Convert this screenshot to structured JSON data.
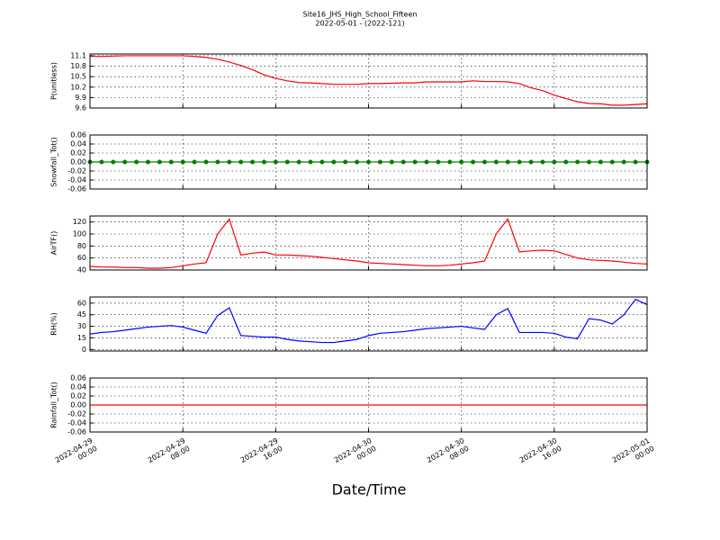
{
  "title": "Site16_JHS_High_School_Fifteen",
  "subtitle": "2022-05-01 - (2022-121)",
  "xlabel": "Date/Time",
  "chart_data": [
    {
      "type": "line",
      "ylabel": "P(unitless)",
      "xlim": [
        "2022-04-29 00:00",
        "2022-05-01 00:00"
      ],
      "xticks": [
        "2022-04-29 00:00",
        "2022-04-29 08:00",
        "2022-04-29 16:00",
        "2022-04-30 00:00",
        "2022-04-30 08:00",
        "2022-04-30 16:00",
        "2022-05-01 00:00"
      ],
      "ylim": [
        9.6,
        11.15
      ],
      "yticks": [
        9.6,
        9.9,
        10.2,
        10.5,
        10.8,
        11.1
      ],
      "grid": true,
      "x": [
        "2022-04-29 00:00",
        "2022-04-29 01:00",
        "2022-04-29 02:00",
        "2022-04-29 03:00",
        "2022-04-29 04:00",
        "2022-04-29 05:00",
        "2022-04-29 06:00",
        "2022-04-29 07:00",
        "2022-04-29 08:00",
        "2022-04-29 09:00",
        "2022-04-29 10:00",
        "2022-04-29 11:00",
        "2022-04-29 12:00",
        "2022-04-29 13:00",
        "2022-04-29 14:00",
        "2022-04-29 15:00",
        "2022-04-29 16:00",
        "2022-04-29 17:00",
        "2022-04-29 18:00",
        "2022-04-29 19:00",
        "2022-04-29 20:00",
        "2022-04-29 21:00",
        "2022-04-29 22:00",
        "2022-04-29 23:00",
        "2022-04-30 00:00",
        "2022-04-30 01:00",
        "2022-04-30 02:00",
        "2022-04-30 03:00",
        "2022-04-30 04:00",
        "2022-04-30 05:00",
        "2022-04-30 06:00",
        "2022-04-30 07:00",
        "2022-04-30 08:00",
        "2022-04-30 09:00",
        "2022-04-30 10:00",
        "2022-04-30 11:00",
        "2022-04-30 12:00",
        "2022-04-30 13:00",
        "2022-04-30 14:00",
        "2022-04-30 15:00",
        "2022-04-30 16:00",
        "2022-04-30 17:00",
        "2022-04-30 18:00",
        "2022-04-30 19:00",
        "2022-04-30 20:00",
        "2022-04-30 21:00",
        "2022-04-30 22:00",
        "2022-04-30 23:00",
        "2022-05-01 00:00"
      ],
      "series": [
        {
          "color": "#ff0000",
          "markers": false,
          "values": [
            11.08,
            11.08,
            11.09,
            11.1,
            11.1,
            11.1,
            11.1,
            11.1,
            11.1,
            11.08,
            11.05,
            11.0,
            10.92,
            10.82,
            10.7,
            10.55,
            10.45,
            10.38,
            10.33,
            10.32,
            10.3,
            10.28,
            10.28,
            10.28,
            10.3,
            10.3,
            10.31,
            10.32,
            10.32,
            10.35,
            10.35,
            10.35,
            10.35,
            10.38,
            10.36,
            10.36,
            10.35,
            10.3,
            10.18,
            10.1,
            9.97,
            9.87,
            9.78,
            9.73,
            9.72,
            9.68,
            9.68,
            9.7,
            9.72
          ]
        }
      ]
    },
    {
      "type": "line",
      "ylabel": "Snowfall_Tot()",
      "xlim": [
        "2022-04-29 00:00",
        "2022-05-01 00:00"
      ],
      "xticks": [
        "2022-04-29 00:00",
        "2022-04-29 08:00",
        "2022-04-29 16:00",
        "2022-04-30 00:00",
        "2022-04-30 08:00",
        "2022-04-30 16:00",
        "2022-05-01 00:00"
      ],
      "ylim": [
        -0.06,
        0.06
      ],
      "yticks": [
        -0.06,
        -0.04,
        -0.02,
        {
          "value": 0,
          "label": "0.00"
        },
        0.02,
        0.04,
        0.06
      ],
      "grid": true,
      "x": [
        "2022-04-29 00:00",
        "2022-04-29 01:00",
        "2022-04-29 02:00",
        "2022-04-29 03:00",
        "2022-04-29 04:00",
        "2022-04-29 05:00",
        "2022-04-29 06:00",
        "2022-04-29 07:00",
        "2022-04-29 08:00",
        "2022-04-29 09:00",
        "2022-04-29 10:00",
        "2022-04-29 11:00",
        "2022-04-29 12:00",
        "2022-04-29 13:00",
        "2022-04-29 14:00",
        "2022-04-29 15:00",
        "2022-04-29 16:00",
        "2022-04-29 17:00",
        "2022-04-29 18:00",
        "2022-04-29 19:00",
        "2022-04-29 20:00",
        "2022-04-29 21:00",
        "2022-04-29 22:00",
        "2022-04-29 23:00",
        "2022-04-30 00:00",
        "2022-04-30 01:00",
        "2022-04-30 02:00",
        "2022-04-30 03:00",
        "2022-04-30 04:00",
        "2022-04-30 05:00",
        "2022-04-30 06:00",
        "2022-04-30 07:00",
        "2022-04-30 08:00",
        "2022-04-30 09:00",
        "2022-04-30 10:00",
        "2022-04-30 11:00",
        "2022-04-30 12:00",
        "2022-04-30 13:00",
        "2022-04-30 14:00",
        "2022-04-30 15:00",
        "2022-04-30 16:00",
        "2022-04-30 17:00",
        "2022-04-30 18:00",
        "2022-04-30 19:00",
        "2022-04-30 20:00",
        "2022-04-30 21:00",
        "2022-04-30 22:00",
        "2022-04-30 23:00",
        "2022-05-01 00:00"
      ],
      "series": [
        {
          "color": "#008000",
          "markers": true,
          "values": [
            0,
            0,
            0,
            0,
            0,
            0,
            0,
            0,
            0,
            0,
            0,
            0,
            0,
            0,
            0,
            0,
            0,
            0,
            0,
            0,
            0,
            0,
            0,
            0,
            0,
            0,
            0,
            0,
            0,
            0,
            0,
            0,
            0,
            0,
            0,
            0,
            0,
            0,
            0,
            0,
            0,
            0,
            0,
            0,
            0,
            0,
            0,
            0,
            0
          ]
        }
      ]
    },
    {
      "type": "line",
      "ylabel": "AirTF()",
      "xlim": [
        "2022-04-29 00:00",
        "2022-05-01 00:00"
      ],
      "xticks": [
        "2022-04-29 00:00",
        "2022-04-29 08:00",
        "2022-04-29 16:00",
        "2022-04-30 00:00",
        "2022-04-30 08:00",
        "2022-04-30 16:00",
        "2022-05-01 00:00"
      ],
      "ylim": [
        40,
        130
      ],
      "yticks": [
        40,
        60,
        80,
        100,
        120
      ],
      "grid": true,
      "x": [
        "2022-04-29 00:00",
        "2022-04-29 01:00",
        "2022-04-29 02:00",
        "2022-04-29 03:00",
        "2022-04-29 04:00",
        "2022-04-29 05:00",
        "2022-04-29 06:00",
        "2022-04-29 07:00",
        "2022-04-29 08:00",
        "2022-04-29 09:00",
        "2022-04-29 10:00",
        "2022-04-29 11:00",
        "2022-04-29 12:00",
        "2022-04-29 13:00",
        "2022-04-29 14:00",
        "2022-04-29 15:00",
        "2022-04-29 16:00",
        "2022-04-29 17:00",
        "2022-04-29 18:00",
        "2022-04-29 19:00",
        "2022-04-29 20:00",
        "2022-04-29 21:00",
        "2022-04-29 22:00",
        "2022-04-29 23:00",
        "2022-04-30 00:00",
        "2022-04-30 01:00",
        "2022-04-30 02:00",
        "2022-04-30 03:00",
        "2022-04-30 04:00",
        "2022-04-30 05:00",
        "2022-04-30 06:00",
        "2022-04-30 07:00",
        "2022-04-30 08:00",
        "2022-04-30 09:00",
        "2022-04-30 10:00",
        "2022-04-30 11:00",
        "2022-04-30 12:00",
        "2022-04-30 13:00",
        "2022-04-30 14:00",
        "2022-04-30 15:00",
        "2022-04-30 16:00",
        "2022-04-30 17:00",
        "2022-04-30 18:00",
        "2022-04-30 19:00",
        "2022-04-30 20:00",
        "2022-04-30 21:00",
        "2022-04-30 22:00",
        "2022-04-30 23:00",
        "2022-05-01 00:00"
      ],
      "series": [
        {
          "color": "#ff0000",
          "markers": false,
          "values": [
            46,
            45,
            45,
            44,
            44,
            43,
            43,
            44,
            47,
            50,
            52,
            100,
            125,
            65,
            68,
            70,
            65,
            65,
            64,
            63,
            61,
            59,
            57,
            55,
            52,
            51,
            50,
            49,
            48,
            47,
            47,
            48,
            50,
            52,
            55,
            100,
            125,
            70,
            72,
            73,
            72,
            66,
            60,
            57,
            56,
            55,
            53,
            51,
            50
          ]
        }
      ]
    },
    {
      "type": "line",
      "ylabel": "RH(%)",
      "xlim": [
        "2022-04-29 00:00",
        "2022-05-01 00:00"
      ],
      "xticks": [
        "2022-04-29 00:00",
        "2022-04-29 08:00",
        "2022-04-29 16:00",
        "2022-04-30 00:00",
        "2022-04-30 08:00",
        "2022-04-30 16:00",
        "2022-05-01 00:00"
      ],
      "ylim": [
        -2,
        68
      ],
      "yticks": [
        0,
        15,
        30,
        45,
        60
      ],
      "grid": true,
      "x": [
        "2022-04-29 00:00",
        "2022-04-29 01:00",
        "2022-04-29 02:00",
        "2022-04-29 03:00",
        "2022-04-29 04:00",
        "2022-04-29 05:00",
        "2022-04-29 06:00",
        "2022-04-29 07:00",
        "2022-04-29 08:00",
        "2022-04-29 09:00",
        "2022-04-29 10:00",
        "2022-04-29 11:00",
        "2022-04-29 12:00",
        "2022-04-29 13:00",
        "2022-04-29 14:00",
        "2022-04-29 15:00",
        "2022-04-29 16:00",
        "2022-04-29 17:00",
        "2022-04-29 18:00",
        "2022-04-29 19:00",
        "2022-04-29 20:00",
        "2022-04-29 21:00",
        "2022-04-29 22:00",
        "2022-04-29 23:00",
        "2022-04-30 00:00",
        "2022-04-30 01:00",
        "2022-04-30 02:00",
        "2022-04-30 03:00",
        "2022-04-30 04:00",
        "2022-04-30 05:00",
        "2022-04-30 06:00",
        "2022-04-30 07:00",
        "2022-04-30 08:00",
        "2022-04-30 09:00",
        "2022-04-30 10:00",
        "2022-04-30 11:00",
        "2022-04-30 12:00",
        "2022-04-30 13:00",
        "2022-04-30 14:00",
        "2022-04-30 15:00",
        "2022-04-30 16:00",
        "2022-04-30 17:00",
        "2022-04-30 18:00",
        "2022-04-30 19:00",
        "2022-04-30 20:00",
        "2022-04-30 21:00",
        "2022-04-30 22:00",
        "2022-04-30 23:00",
        "2022-05-01 00:00"
      ],
      "series": [
        {
          "color": "#0000ff",
          "markers": false,
          "values": [
            20,
            22,
            23,
            25,
            27,
            29,
            30,
            31,
            29,
            25,
            21,
            44,
            54,
            18,
            17,
            16,
            16,
            13,
            11,
            10,
            9,
            9,
            11,
            13,
            18,
            21,
            22,
            23,
            25,
            27,
            28,
            29,
            30,
            28,
            26,
            45,
            53,
            22,
            22,
            22,
            21,
            16,
            14,
            40,
            38,
            33,
            45,
            65,
            58
          ]
        }
      ]
    },
    {
      "type": "line",
      "ylabel": "Rainfall_Tot()",
      "xlim": [
        "2022-04-29 00:00",
        "2022-05-01 00:00"
      ],
      "xticks": [
        "2022-04-29 00:00",
        "2022-04-29 08:00",
        "2022-04-29 16:00",
        "2022-04-30 00:00",
        "2022-04-30 08:00",
        "2022-04-30 16:00",
        "2022-05-01 00:00"
      ],
      "ylim": [
        -0.06,
        0.06
      ],
      "yticks": [
        -0.06,
        -0.04,
        -0.02,
        {
          "value": 0,
          "label": "0.00"
        },
        0.02,
        0.04,
        0.06
      ],
      "grid": true,
      "show_xtick_labels": true,
      "x": [
        "2022-04-29 00:00",
        "2022-04-29 01:00",
        "2022-04-29 02:00",
        "2022-04-29 03:00",
        "2022-04-29 04:00",
        "2022-04-29 05:00",
        "2022-04-29 06:00",
        "2022-04-29 07:00",
        "2022-04-29 08:00",
        "2022-04-29 09:00",
        "2022-04-29 10:00",
        "2022-04-29 11:00",
        "2022-04-29 12:00",
        "2022-04-29 13:00",
        "2022-04-29 14:00",
        "2022-04-29 15:00",
        "2022-04-29 16:00",
        "2022-04-29 17:00",
        "2022-04-29 18:00",
        "2022-04-29 19:00",
        "2022-04-29 20:00",
        "2022-04-29 21:00",
        "2022-04-29 22:00",
        "2022-04-29 23:00",
        "2022-04-30 00:00",
        "2022-04-30 01:00",
        "2022-04-30 02:00",
        "2022-04-30 03:00",
        "2022-04-30 04:00",
        "2022-04-30 05:00",
        "2022-04-30 06:00",
        "2022-04-30 07:00",
        "2022-04-30 08:00",
        "2022-04-30 09:00",
        "2022-04-30 10:00",
        "2022-04-30 11:00",
        "2022-04-30 12:00",
        "2022-04-30 13:00",
        "2022-04-30 14:00",
        "2022-04-30 15:00",
        "2022-04-30 16:00",
        "2022-04-30 17:00",
        "2022-04-30 18:00",
        "2022-04-30 19:00",
        "2022-04-30 20:00",
        "2022-04-30 21:00",
        "2022-04-30 22:00",
        "2022-04-30 23:00",
        "2022-05-01 00:00"
      ],
      "series": [
        {
          "color": "#ff0000",
          "markers": false,
          "values": [
            0,
            0,
            0,
            0,
            0,
            0,
            0,
            0,
            0,
            0,
            0,
            0,
            0,
            0,
            0,
            0,
            0,
            0,
            0,
            0,
            0,
            0,
            0,
            0,
            0,
            0,
            0,
            0,
            0,
            0,
            0,
            0,
            0,
            0,
            0,
            0,
            0,
            0,
            0,
            0,
            0,
            0,
            0,
            0,
            0,
            0,
            0,
            0,
            0
          ]
        }
      ]
    }
  ]
}
